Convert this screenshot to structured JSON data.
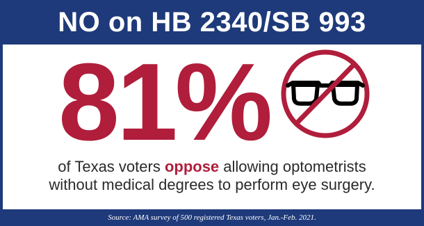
{
  "header": {
    "title": "NO on HB 2340/SB 993"
  },
  "stat": {
    "value": "81%"
  },
  "icon": {
    "name": "no-glasses-icon"
  },
  "statement": {
    "line1_before": "of Texas voters ",
    "line1_emphasis": "oppose",
    "line1_after": " allowing optometrists",
    "line2": "without medical degrees to perform eye surgery."
  },
  "footer": {
    "source": "Source: AMA survey of 500 registered Texas voters, Jan.-Feb. 2021."
  },
  "colors": {
    "navy": "#1e3a7a",
    "crimson": "#b01e3c",
    "text": "#2a2a2a"
  }
}
